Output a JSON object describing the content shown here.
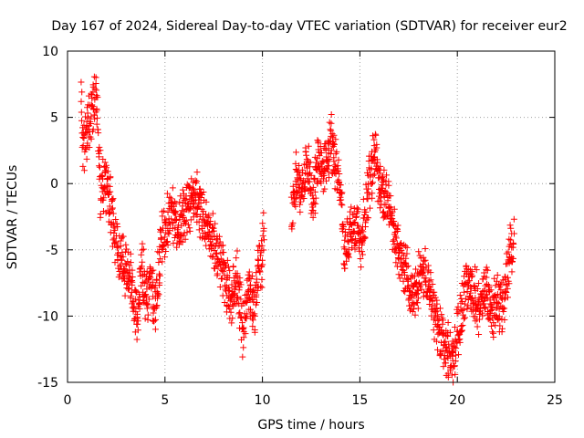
{
  "chart_data": {
    "type": "scatter",
    "title": "Day 167 of 2024, Sidereal Day-to-day VTEC variation (SDTVAR) for receiver eur2",
    "xlabel": "GPS time / hours",
    "ylabel": "SDTVAR / TECUs",
    "xlim": [
      0,
      25
    ],
    "ylim": [
      -15,
      10
    ],
    "x_ticks": [
      0,
      5,
      10,
      15,
      20,
      25
    ],
    "y_ticks": [
      -15,
      -10,
      -5,
      0,
      5,
      10
    ],
    "grid": true,
    "marker": "+",
    "color": "#ff0000",
    "profile": [
      [
        0.7,
        6.5
      ],
      [
        0.8,
        2.7
      ],
      [
        1.5,
        6.7
      ],
      [
        1.6,
        3.0
      ],
      [
        1.7,
        -1.0
      ],
      [
        1.9,
        0.5
      ],
      [
        2.1,
        -0.8
      ],
      [
        2.3,
        -2.5
      ],
      [
        2.6,
        -5.3
      ],
      [
        3.0,
        -6.5
      ],
      [
        3.3,
        -7.5
      ],
      [
        3.6,
        -10.5
      ],
      [
        3.8,
        -5.5
      ],
      [
        4.0,
        -8.5
      ],
      [
        4.3,
        -8.0
      ],
      [
        4.5,
        -9.5
      ],
      [
        4.8,
        -4.5
      ],
      [
        5.0,
        -3.5
      ],
      [
        5.3,
        -2.0
      ],
      [
        5.6,
        -3.5
      ],
      [
        6.0,
        -2.5
      ],
      [
        6.5,
        -1.0
      ],
      [
        7.0,
        -2.5
      ],
      [
        7.3,
        -3.5
      ],
      [
        7.6,
        -5.0
      ],
      [
        8.0,
        -6.5
      ],
      [
        8.4,
        -9.0
      ],
      [
        8.7,
        -7.0
      ],
      [
        9.0,
        -11.0
      ],
      [
        9.3,
        -8.0
      ],
      [
        9.6,
        -9.5
      ],
      [
        9.8,
        -6.0
      ],
      [
        10.0,
        -5.5
      ],
      [
        10.1,
        -3.0
      ],
      [
        11.5,
        -2.0
      ],
      [
        11.7,
        0.5
      ],
      [
        12.0,
        -0.5
      ],
      [
        12.3,
        1.5
      ],
      [
        12.6,
        -1.5
      ],
      [
        12.9,
        2.0
      ],
      [
        13.2,
        1.0
      ],
      [
        13.5,
        3.0
      ],
      [
        13.8,
        1.5
      ],
      [
        14.0,
        0.0
      ],
      [
        14.2,
        -5.5
      ],
      [
        14.5,
        -4.0
      ],
      [
        14.8,
        -2.5
      ],
      [
        15.1,
        -4.5
      ],
      [
        15.3,
        -1.5
      ],
      [
        15.8,
        2.5
      ],
      [
        16.0,
        0.0
      ],
      [
        16.3,
        -1.0
      ],
      [
        16.6,
        -2.5
      ],
      [
        17.0,
        -5.0
      ],
      [
        17.4,
        -7.0
      ],
      [
        17.8,
        -8.5
      ],
      [
        18.2,
        -6.5
      ],
      [
        18.5,
        -8.0
      ],
      [
        18.9,
        -10.0
      ],
      [
        19.2,
        -12.0
      ],
      [
        19.5,
        -12.5
      ],
      [
        19.8,
        -13.5
      ],
      [
        20.0,
        -11.5
      ],
      [
        20.3,
        -9.0
      ],
      [
        20.6,
        -7.5
      ],
      [
        20.9,
        -8.5
      ],
      [
        21.2,
        -9.5
      ],
      [
        21.5,
        -7.5
      ],
      [
        21.8,
        -10.0
      ],
      [
        22.0,
        -8.5
      ],
      [
        22.3,
        -9.5
      ],
      [
        22.6,
        -6.5
      ],
      [
        22.9,
        -3.5
      ]
    ],
    "spread": 1.6
  }
}
